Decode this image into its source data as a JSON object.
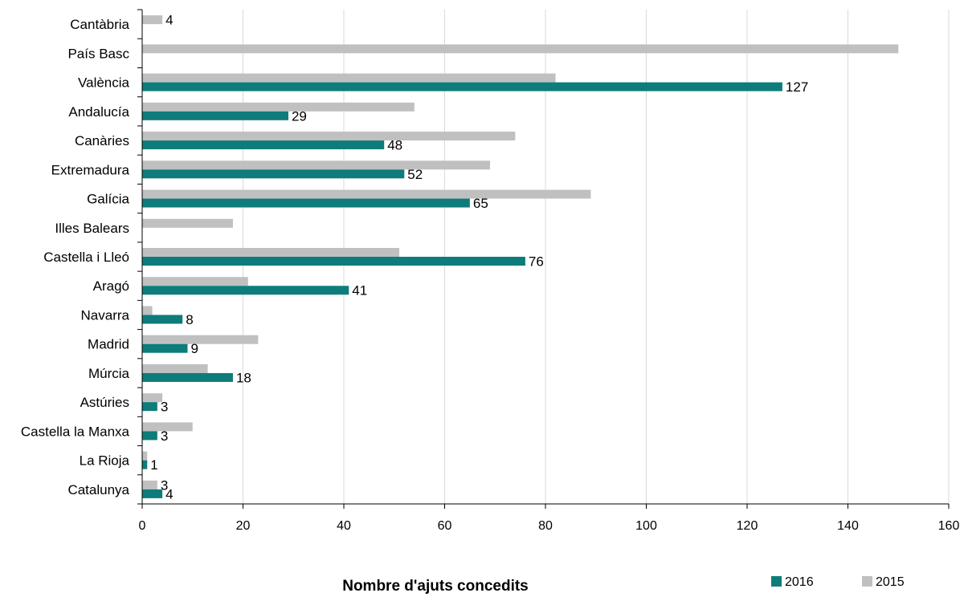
{
  "chart_data": {
    "type": "bar",
    "orientation": "horizontal",
    "xlabel": "Nombre d'ajuts concedits",
    "xlim": [
      0,
      160
    ],
    "xticks": [
      0,
      20,
      40,
      60,
      80,
      100,
      120,
      140,
      160
    ],
    "grid": "vertical",
    "legend_position": "bottom-right",
    "categories": [
      "Cantàbria",
      "País Basc",
      "València",
      "Andalucía",
      "Canàries",
      "Extremadura",
      "Galícia",
      "Illes Balears",
      "Castella i Lleó",
      "Aragó",
      "Navarra",
      "Madrid",
      "Múrcia",
      "Astúries",
      "Castella la Manxa",
      "La Rioja",
      "Catalunya"
    ],
    "series": [
      {
        "name": "2016",
        "color": "#0e7c7b",
        "values": [
          0,
          0,
          127,
          29,
          48,
          52,
          65,
          0,
          76,
          41,
          8,
          9,
          18,
          3,
          3,
          1,
          4
        ],
        "labels": [
          "",
          "",
          "127",
          "29",
          "48",
          "52",
          "65",
          "",
          "76",
          "41",
          "8",
          "9",
          "18",
          "3",
          "3",
          "1",
          "4"
        ]
      },
      {
        "name": "2015",
        "color": "#c0c0c0",
        "values": [
          4,
          150,
          82,
          54,
          74,
          69,
          89,
          18,
          51,
          21,
          2,
          23,
          13,
          4,
          10,
          1,
          3
        ],
        "labels": [
          "4",
          "",
          "",
          "",
          "",
          "",
          "",
          "",
          "",
          "",
          "",
          "",
          "",
          "",
          "",
          "",
          "3"
        ]
      }
    ]
  }
}
